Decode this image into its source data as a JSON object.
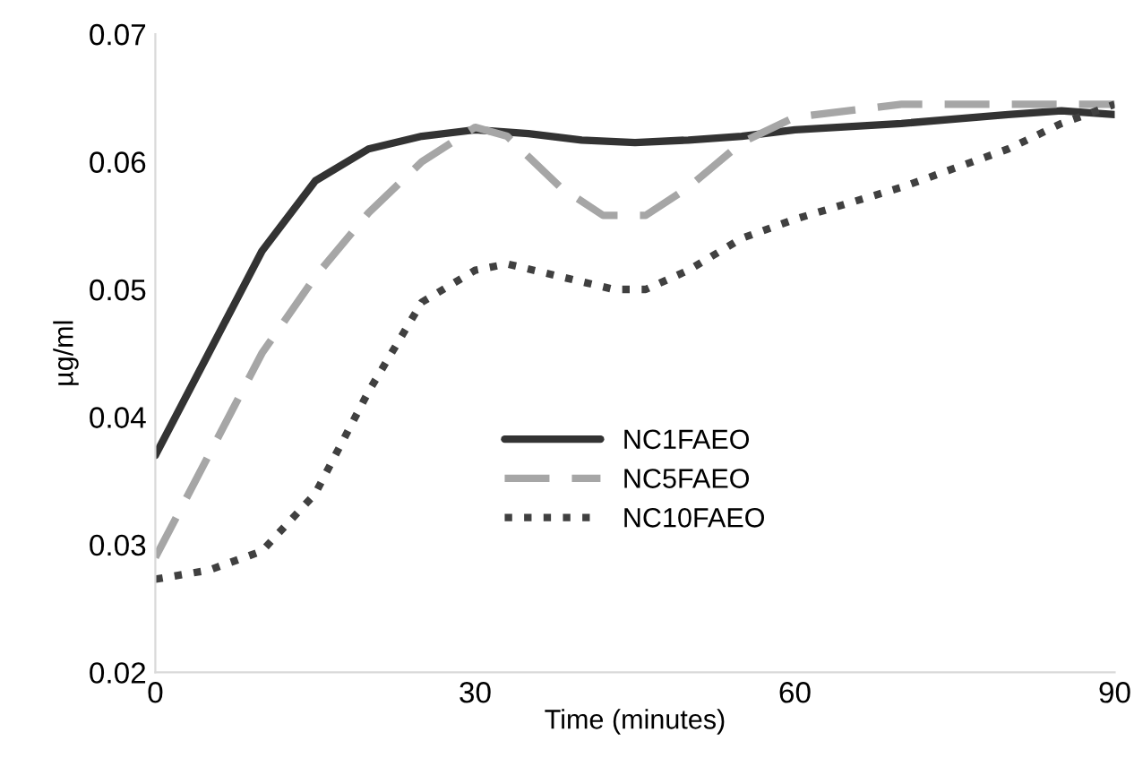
{
  "chart_data": {
    "type": "line",
    "xlabel": "Time (minutes)",
    "ylabel": "µg/ml",
    "xlim": [
      0,
      90
    ],
    "xticks": [
      0,
      30,
      60,
      90
    ],
    "ylim": [
      0.02,
      0.07
    ],
    "yticks": [
      0.02,
      0.03,
      0.04,
      0.05,
      0.06,
      0.07
    ],
    "grid": false,
    "legend": "center",
    "marker": "none",
    "series": [
      {
        "name": "NC1FAEO",
        "color": "#333333",
        "line_style": "solid",
        "x": [
          0,
          5,
          10,
          15,
          20,
          25,
          30,
          35,
          40,
          45,
          50,
          55,
          60,
          70,
          80,
          85,
          90
        ],
        "values": [
          0.037,
          0.045,
          0.053,
          0.0585,
          0.061,
          0.062,
          0.0625,
          0.0622,
          0.0617,
          0.0615,
          0.0617,
          0.062,
          0.0625,
          0.063,
          0.0637,
          0.064,
          0.0637
        ]
      },
      {
        "name": "NC5FAEO",
        "color": "#a6a6a6",
        "line_style": "dashed",
        "x": [
          0,
          5,
          10,
          15,
          20,
          25,
          30,
          33,
          38,
          42,
          46,
          50,
          55,
          60,
          70,
          80,
          90
        ],
        "values": [
          0.029,
          0.037,
          0.045,
          0.051,
          0.056,
          0.06,
          0.0627,
          0.062,
          0.058,
          0.0558,
          0.0558,
          0.058,
          0.0615,
          0.0635,
          0.0645,
          0.0645,
          0.0645
        ]
      },
      {
        "name": "NC10FAEO",
        "color": "#404040",
        "line_style": "dotted",
        "x": [
          0,
          5,
          10,
          15,
          20,
          25,
          30,
          33,
          38,
          43,
          46,
          50,
          55,
          60,
          70,
          80,
          85,
          90
        ],
        "values": [
          0.0273,
          0.028,
          0.0295,
          0.034,
          0.042,
          0.049,
          0.0515,
          0.052,
          0.051,
          0.05,
          0.05,
          0.0515,
          0.054,
          0.0555,
          0.058,
          0.061,
          0.063,
          0.0645
        ]
      }
    ]
  }
}
